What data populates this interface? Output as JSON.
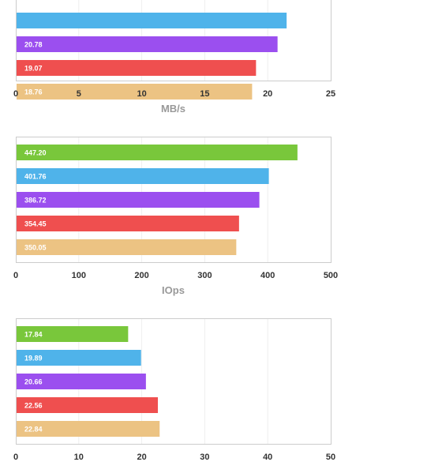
{
  "colors": {
    "series": [
      "#79c73b",
      "#4fb3ea",
      "#9b4fef",
      "#ef4f4f",
      "#ecc383"
    ],
    "grid": "#eeeeee",
    "frame": "#cccccc"
  },
  "chart_data": [
    {
      "type": "bar",
      "orientation": "horizontal",
      "values": [
        null,
        21.5,
        20.78,
        19.07,
        18.76
      ],
      "value_labels": [
        "",
        "",
        "20.78",
        "19.07",
        "18.76"
      ],
      "xlabel": "MB/s",
      "xlim": [
        0,
        25
      ],
      "xticks": [
        0,
        5,
        10,
        15,
        20,
        25
      ],
      "grid": true,
      "cropped_top": true
    },
    {
      "type": "bar",
      "orientation": "horizontal",
      "values": [
        447.2,
        401.76,
        386.72,
        354.45,
        350.05
      ],
      "value_labels": [
        "447.20",
        "401.76",
        "386.72",
        "354.45",
        "350.05"
      ],
      "xlabel": "IOps",
      "xlim": [
        0,
        500
      ],
      "xticks": [
        0,
        100,
        200,
        300,
        400,
        500
      ],
      "grid": true
    },
    {
      "type": "bar",
      "orientation": "horizontal",
      "values": [
        17.84,
        19.89,
        20.66,
        22.56,
        22.84
      ],
      "value_labels": [
        "17.84",
        "19.89",
        "20.66",
        "22.56",
        "22.84"
      ],
      "xlabel": "",
      "xlim": [
        0,
        50
      ],
      "xticks": [
        0,
        10,
        20,
        30,
        40,
        50
      ],
      "grid": true
    }
  ]
}
